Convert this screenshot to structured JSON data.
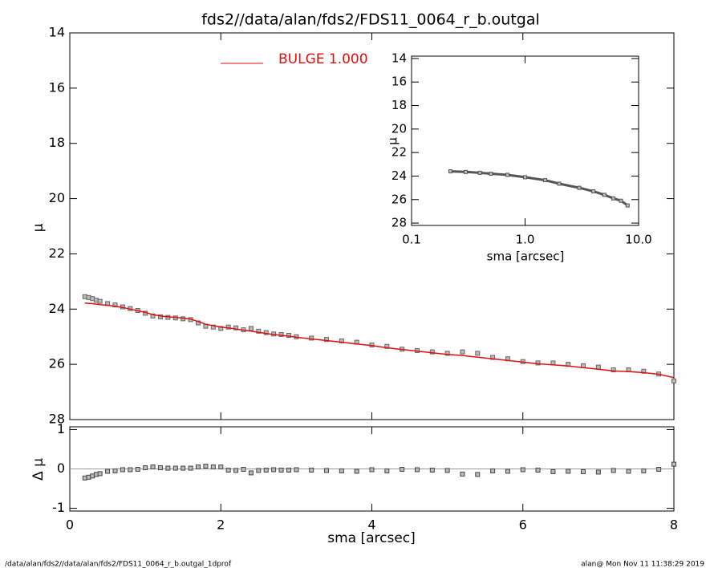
{
  "chart_data": [
    {
      "type": "scatter",
      "title": "fds2//data/alan/fds2/FDS11_0064_r_b.outgal",
      "ylabel": "μ",
      "xlim": [
        0,
        8
      ],
      "ylim": [
        28,
        14
      ],
      "yticks": [
        14,
        16,
        18,
        20,
        22,
        24,
        26,
        28
      ],
      "x": [
        0.2,
        0.25,
        0.3,
        0.35,
        0.4,
        0.5,
        0.6,
        0.7,
        0.8,
        0.9,
        1.0,
        1.1,
        1.2,
        1.3,
        1.4,
        1.5,
        1.6,
        1.7,
        1.8,
        1.9,
        2.0,
        2.1,
        2.2,
        2.3,
        2.4,
        2.5,
        2.6,
        2.7,
        2.8,
        2.9,
        3.0,
        3.2,
        3.4,
        3.6,
        3.8,
        4.0,
        4.2,
        4.4,
        4.6,
        4.8,
        5.0,
        5.2,
        5.4,
        5.6,
        5.8,
        6.0,
        6.2,
        6.4,
        6.6,
        6.8,
        7.0,
        7.2,
        7.4,
        7.6,
        7.8,
        8.0
      ],
      "series": [
        {
          "color": "#666666",
          "mode": "markers",
          "values": [
            23.55,
            23.58,
            23.62,
            23.68,
            23.72,
            23.8,
            23.85,
            23.92,
            23.98,
            24.05,
            24.15,
            24.25,
            24.28,
            24.3,
            24.32,
            24.35,
            24.38,
            24.5,
            24.62,
            24.65,
            24.7,
            24.65,
            24.68,
            24.75,
            24.7,
            24.8,
            24.85,
            24.9,
            24.92,
            24.95,
            25.0,
            25.05,
            25.1,
            25.15,
            25.2,
            25.3,
            25.35,
            25.45,
            25.5,
            25.55,
            25.6,
            25.55,
            25.6,
            25.75,
            25.8,
            25.9,
            25.95,
            25.95,
            26.0,
            26.05,
            26.1,
            26.2,
            26.2,
            26.25,
            26.35,
            26.6
          ]
        },
        {
          "name": "BULGE  1.000",
          "color": "#e01010",
          "mode": "lines",
          "values": [
            23.78,
            23.79,
            23.8,
            23.82,
            23.84,
            23.86,
            23.9,
            23.94,
            24.0,
            24.06,
            24.12,
            24.2,
            24.25,
            24.28,
            24.3,
            24.33,
            24.36,
            24.45,
            24.55,
            24.6,
            24.65,
            24.68,
            24.72,
            24.76,
            24.8,
            24.84,
            24.88,
            24.92,
            24.95,
            24.98,
            25.02,
            25.08,
            25.14,
            25.2,
            25.26,
            25.32,
            25.4,
            25.46,
            25.52,
            25.58,
            25.64,
            25.68,
            25.74,
            25.8,
            25.86,
            25.92,
            25.98,
            26.02,
            26.06,
            26.12,
            26.18,
            26.24,
            26.26,
            26.3,
            26.36,
            26.48
          ]
        }
      ]
    },
    {
      "type": "scatter",
      "ylabel": "Δ μ",
      "xlabel": "sma [arcsec]",
      "xlim": [
        0,
        8
      ],
      "xticks": [
        0,
        2,
        4,
        6,
        8
      ],
      "ylim": [
        -1.07,
        1.07
      ],
      "yticks": [
        -1,
        0,
        1
      ],
      "x": [
        0.2,
        0.25,
        0.3,
        0.35,
        0.4,
        0.5,
        0.6,
        0.7,
        0.8,
        0.9,
        1.0,
        1.1,
        1.2,
        1.3,
        1.4,
        1.5,
        1.6,
        1.7,
        1.8,
        1.9,
        2.0,
        2.1,
        2.2,
        2.3,
        2.4,
        2.5,
        2.6,
        2.7,
        2.8,
        2.9,
        3.0,
        3.2,
        3.4,
        3.6,
        3.8,
        4.0,
        4.2,
        4.4,
        4.6,
        4.8,
        5.0,
        5.2,
        5.4,
        5.6,
        5.8,
        6.0,
        6.2,
        6.4,
        6.6,
        6.8,
        7.0,
        7.2,
        7.4,
        7.6,
        7.8,
        8.0
      ],
      "series": [
        {
          "color": "#444444",
          "mode": "markers",
          "values": [
            -0.23,
            -0.21,
            -0.18,
            -0.14,
            -0.12,
            -0.06,
            -0.05,
            -0.02,
            -0.02,
            -0.01,
            0.03,
            0.05,
            0.03,
            0.02,
            0.02,
            0.02,
            0.02,
            0.05,
            0.07,
            0.05,
            0.05,
            -0.03,
            -0.04,
            -0.01,
            -0.1,
            -0.04,
            -0.03,
            -0.02,
            -0.03,
            -0.03,
            -0.02,
            -0.03,
            -0.04,
            -0.05,
            -0.06,
            -0.02,
            -0.05,
            -0.01,
            -0.02,
            -0.03,
            -0.04,
            -0.13,
            -0.14,
            -0.05,
            -0.06,
            -0.02,
            -0.03,
            -0.07,
            -0.06,
            -0.07,
            -0.08,
            -0.04,
            -0.06,
            -0.05,
            -0.01,
            0.12
          ]
        }
      ]
    },
    {
      "type": "scatter",
      "ylabel": "μ",
      "xlabel": "sma [arcsec]",
      "xlog": true,
      "xlim": [
        0.1,
        10
      ],
      "xticks": [
        0.1,
        {
          "value": 1,
          "label": "1.0"
        },
        {
          "value": 10,
          "label": "10.0"
        }
      ],
      "ylim": [
        28.2,
        13.8
      ],
      "yticks": [
        14,
        16,
        18,
        20,
        22,
        24,
        26,
        28
      ],
      "x": [
        0.22,
        0.3,
        0.4,
        0.5,
        0.7,
        1.0,
        1.5,
        2.0,
        3.0,
        4.0,
        5.0,
        6.0,
        7.0,
        8.0
      ],
      "series": [
        {
          "color": "#555555",
          "mode": "lines+markers",
          "values": [
            23.6,
            23.65,
            23.72,
            23.8,
            23.9,
            24.1,
            24.35,
            24.65,
            25.0,
            25.3,
            25.6,
            25.9,
            26.1,
            26.5
          ]
        }
      ]
    }
  ],
  "footer": {
    "left": "/data/alan/fds2//data/alan/fds2/FDS11_0064_r_b.outgal_1dprof",
    "right": "alan@  Mon Nov 11 11:38:29 2019"
  }
}
